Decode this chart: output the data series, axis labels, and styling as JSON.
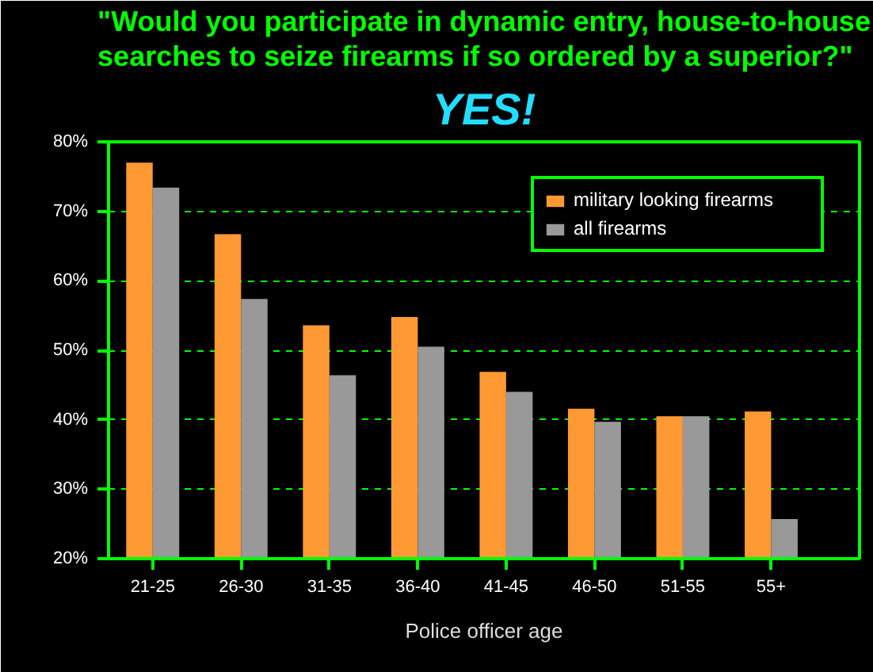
{
  "chart_data": {
    "type": "bar",
    "title": "\"Would you participate in dynamic entry, house-to-house searches to seize firearms if so ordered by a superior?\"",
    "subtitle": "YES!",
    "xlabel": "Police officer age",
    "categories": [
      "21-25",
      "26-30",
      "31-35",
      "36-40",
      "41-45",
      "46-50",
      "51-55",
      "55+"
    ],
    "series": [
      {
        "name": "military looking firearms",
        "color": "#ff9933",
        "values": [
          77.0,
          66.7,
          53.6,
          54.8,
          46.9,
          41.6,
          40.5,
          41.2
        ]
      },
      {
        "name": "all firearms",
        "color": "#999999",
        "values": [
          73.4,
          57.4,
          46.4,
          50.5,
          44.0,
          39.7,
          40.5,
          25.7
        ]
      }
    ],
    "ylim": [
      20,
      80
    ],
    "yticks": [
      {
        "value": 20,
        "label": "20%"
      },
      {
        "value": 30,
        "label": "30%"
      },
      {
        "value": 40,
        "label": "40%"
      },
      {
        "value": 50,
        "label": "50%"
      },
      {
        "value": 60,
        "label": "60%"
      },
      {
        "value": 70,
        "label": "70%"
      },
      {
        "value": 80,
        "label": "80%"
      }
    ],
    "grid": "y",
    "legend": "top right"
  }
}
